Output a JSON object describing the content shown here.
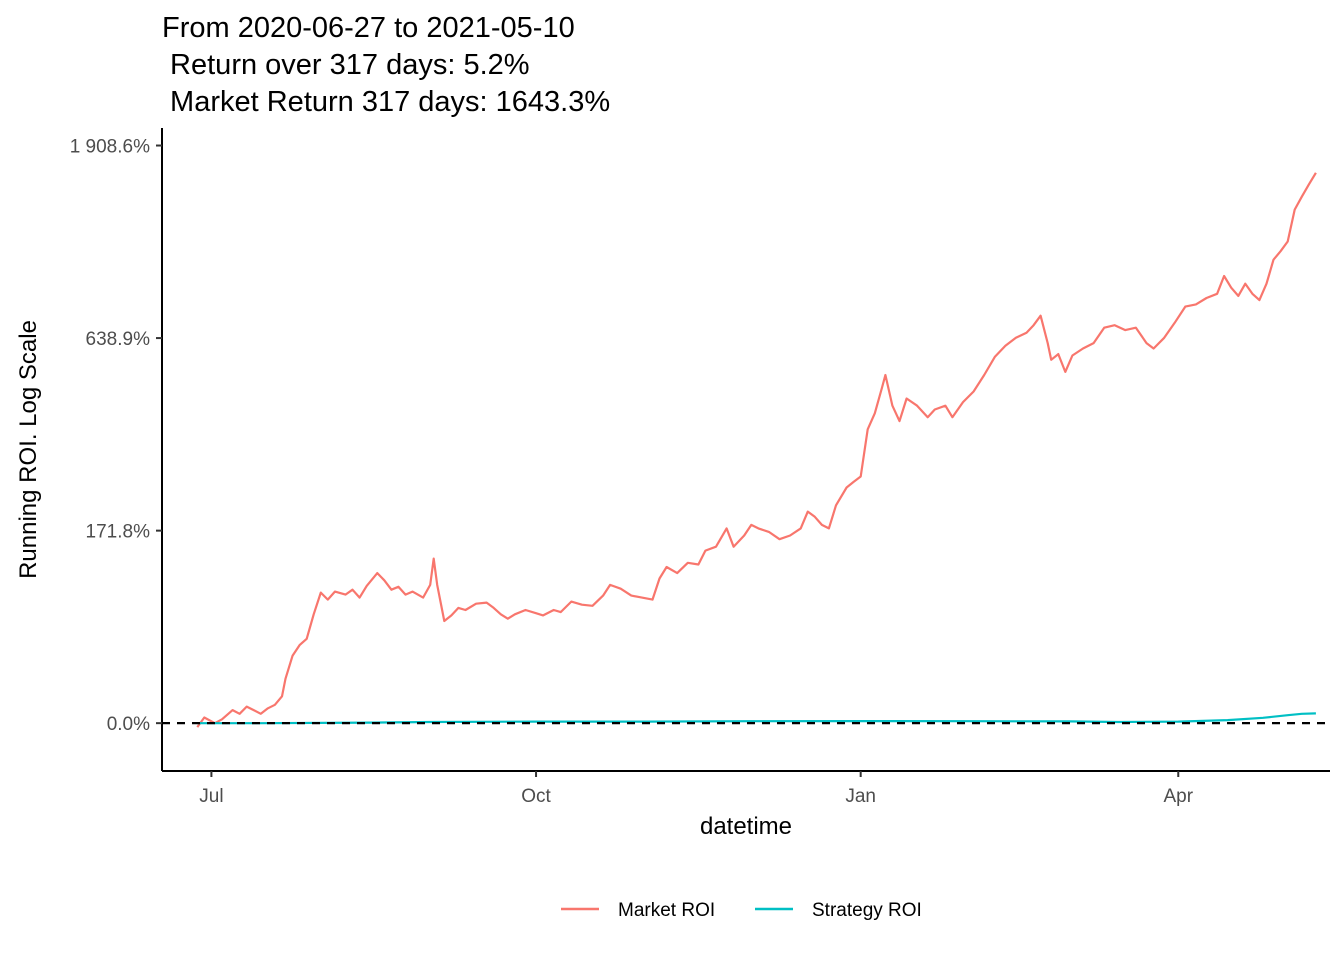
{
  "chart_data": {
    "type": "line",
    "title_lines": [
      "From 2020-06-27 to 2021-05-10",
      " Return over 317 days: 5.2%",
      " Market Return 317 days: 1643.3%"
    ],
    "xlabel": "datetime",
    "ylabel": "Running ROI. Log Scale",
    "y_scale": "log",
    "x_ticks": [
      {
        "date": "2020-07-01",
        "label": "Jul"
      },
      {
        "date": "2020-10-01",
        "label": "Oct"
      },
      {
        "date": "2021-01-01",
        "label": "Jan"
      },
      {
        "date": "2021-04-01",
        "label": "Apr"
      }
    ],
    "y_ticks": [
      {
        "value": 0.0,
        "label": "0.0%"
      },
      {
        "value": 171.8,
        "label": "171.8%"
      },
      {
        "value": 638.9,
        "label": "638.9%"
      },
      {
        "value": 1908.6,
        "label": "1 908.6%"
      }
    ],
    "xlim": [
      "2020-06-17",
      "2021-05-14"
    ],
    "ylim": [
      -22,
      2100
    ],
    "reference_line": {
      "value": 0.0,
      "style": "dashed",
      "color": "#000000"
    },
    "grid": false,
    "legend_position": "bottom",
    "series": [
      {
        "name": "Market ROI",
        "color": "#F8766D",
        "points": [
          [
            "2020-06-27",
            -2
          ],
          [
            "2020-06-29",
            3
          ],
          [
            "2020-07-02",
            0
          ],
          [
            "2020-07-04",
            2
          ],
          [
            "2020-07-07",
            7
          ],
          [
            "2020-07-09",
            5
          ],
          [
            "2020-07-11",
            9
          ],
          [
            "2020-07-13",
            7
          ],
          [
            "2020-07-15",
            5
          ],
          [
            "2020-07-17",
            8
          ],
          [
            "2020-07-19",
            10
          ],
          [
            "2020-07-21",
            15
          ],
          [
            "2020-07-22",
            26
          ],
          [
            "2020-07-24",
            42
          ],
          [
            "2020-07-26",
            50
          ],
          [
            "2020-07-28",
            55
          ],
          [
            "2020-07-30",
            76
          ],
          [
            "2020-08-01",
            97
          ],
          [
            "2020-08-03",
            90
          ],
          [
            "2020-08-05",
            98
          ],
          [
            "2020-08-08",
            95
          ],
          [
            "2020-08-10",
            100
          ],
          [
            "2020-08-12",
            92
          ],
          [
            "2020-08-14",
            104
          ],
          [
            "2020-08-17",
            118
          ],
          [
            "2020-08-19",
            110
          ],
          [
            "2020-08-21",
            100
          ],
          [
            "2020-08-23",
            103
          ],
          [
            "2020-08-25",
            95
          ],
          [
            "2020-08-27",
            98
          ],
          [
            "2020-08-30",
            92
          ],
          [
            "2020-09-01",
            105
          ],
          [
            "2020-09-02",
            135
          ],
          [
            "2020-09-03",
            105
          ],
          [
            "2020-09-05",
            70
          ],
          [
            "2020-09-07",
            75
          ],
          [
            "2020-09-09",
            82
          ],
          [
            "2020-09-11",
            80
          ],
          [
            "2020-09-14",
            86
          ],
          [
            "2020-09-17",
            87
          ],
          [
            "2020-09-19",
            82
          ],
          [
            "2020-09-21",
            76
          ],
          [
            "2020-09-23",
            72
          ],
          [
            "2020-09-25",
            76
          ],
          [
            "2020-09-28",
            80
          ],
          [
            "2020-10-01",
            77
          ],
          [
            "2020-10-03",
            75
          ],
          [
            "2020-10-06",
            80
          ],
          [
            "2020-10-08",
            78
          ],
          [
            "2020-10-11",
            88
          ],
          [
            "2020-10-14",
            85
          ],
          [
            "2020-10-17",
            84
          ],
          [
            "2020-10-20",
            94
          ],
          [
            "2020-10-22",
            105
          ],
          [
            "2020-10-25",
            101
          ],
          [
            "2020-10-28",
            94
          ],
          [
            "2020-10-31",
            92
          ],
          [
            "2020-11-03",
            90
          ],
          [
            "2020-11-05",
            112
          ],
          [
            "2020-11-07",
            125
          ],
          [
            "2020-11-10",
            118
          ],
          [
            "2020-11-13",
            130
          ],
          [
            "2020-11-16",
            128
          ],
          [
            "2020-11-18",
            145
          ],
          [
            "2020-11-21",
            150
          ],
          [
            "2020-11-24",
            175
          ],
          [
            "2020-11-26",
            150
          ],
          [
            "2020-11-29",
            165
          ],
          [
            "2020-12-01",
            180
          ],
          [
            "2020-12-03",
            175
          ],
          [
            "2020-12-06",
            170
          ],
          [
            "2020-12-09",
            160
          ],
          [
            "2020-12-12",
            165
          ],
          [
            "2020-12-15",
            175
          ],
          [
            "2020-12-17",
            200
          ],
          [
            "2020-12-19",
            192
          ],
          [
            "2020-12-21",
            180
          ],
          [
            "2020-12-23",
            175
          ],
          [
            "2020-12-25",
            210
          ],
          [
            "2020-12-28",
            240
          ],
          [
            "2020-12-30",
            250
          ],
          [
            "2021-01-01",
            260
          ],
          [
            "2021-01-03",
            360
          ],
          [
            "2021-01-05",
            400
          ],
          [
            "2021-01-07",
            470
          ],
          [
            "2021-01-08",
            510
          ],
          [
            "2021-01-10",
            420
          ],
          [
            "2021-01-12",
            380
          ],
          [
            "2021-01-14",
            440
          ],
          [
            "2021-01-17",
            420
          ],
          [
            "2021-01-20",
            390
          ],
          [
            "2021-01-22",
            410
          ],
          [
            "2021-01-25",
            420
          ],
          [
            "2021-01-27",
            390
          ],
          [
            "2021-01-30",
            430
          ],
          [
            "2021-02-02",
            460
          ],
          [
            "2021-02-05",
            510
          ],
          [
            "2021-02-08",
            570
          ],
          [
            "2021-02-11",
            610
          ],
          [
            "2021-02-14",
            640
          ],
          [
            "2021-02-17",
            660
          ],
          [
            "2021-02-19",
            690
          ],
          [
            "2021-02-21",
            730
          ],
          [
            "2021-02-23",
            620
          ],
          [
            "2021-02-24",
            560
          ],
          [
            "2021-02-26",
            580
          ],
          [
            "2021-02-28",
            520
          ],
          [
            "2021-03-02",
            575
          ],
          [
            "2021-03-05",
            600
          ],
          [
            "2021-03-08",
            620
          ],
          [
            "2021-03-11",
            680
          ],
          [
            "2021-03-14",
            690
          ],
          [
            "2021-03-17",
            670
          ],
          [
            "2021-03-20",
            680
          ],
          [
            "2021-03-23",
            620
          ],
          [
            "2021-03-25",
            600
          ],
          [
            "2021-03-28",
            640
          ],
          [
            "2021-03-31",
            700
          ],
          [
            "2021-04-03",
            770
          ],
          [
            "2021-04-06",
            780
          ],
          [
            "2021-04-09",
            810
          ],
          [
            "2021-04-12",
            830
          ],
          [
            "2021-04-14",
            920
          ],
          [
            "2021-04-16",
            860
          ],
          [
            "2021-04-18",
            820
          ],
          [
            "2021-04-20",
            880
          ],
          [
            "2021-04-22",
            830
          ],
          [
            "2021-04-24",
            800
          ],
          [
            "2021-04-26",
            880
          ],
          [
            "2021-04-28",
            1010
          ],
          [
            "2021-04-30",
            1060
          ],
          [
            "2021-05-02",
            1120
          ],
          [
            "2021-05-04",
            1340
          ],
          [
            "2021-05-06",
            1440
          ],
          [
            "2021-05-08",
            1540
          ],
          [
            "2021-05-10",
            1643
          ]
        ]
      },
      {
        "name": "Strategy ROI",
        "color": "#00BFC4",
        "points": [
          [
            "2020-06-27",
            0.0
          ],
          [
            "2020-07-15",
            0.0
          ],
          [
            "2020-08-15",
            0.3
          ],
          [
            "2020-09-01",
            0.6
          ],
          [
            "2020-10-01",
            0.8
          ],
          [
            "2020-11-01",
            0.8
          ],
          [
            "2020-12-01",
            1.0
          ],
          [
            "2021-01-01",
            1.1
          ],
          [
            "2021-02-01",
            1.0
          ],
          [
            "2021-03-01",
            0.9
          ],
          [
            "2021-03-15",
            0.6
          ],
          [
            "2021-04-01",
            0.8
          ],
          [
            "2021-04-15",
            1.6
          ],
          [
            "2021-04-25",
            2.8
          ],
          [
            "2021-05-02",
            4.2
          ],
          [
            "2021-05-06",
            5.0
          ],
          [
            "2021-05-10",
            5.2
          ]
        ]
      }
    ]
  }
}
